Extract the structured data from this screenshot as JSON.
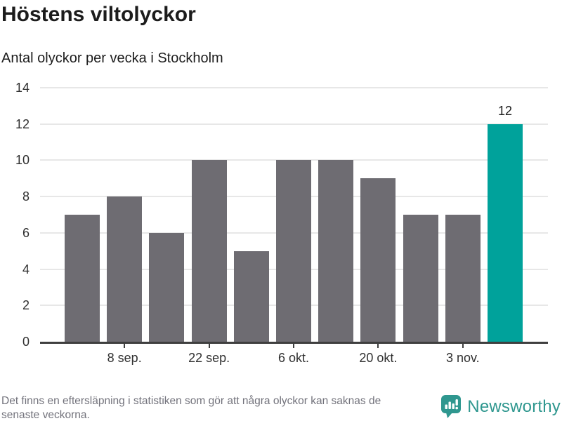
{
  "header": {
    "title": "Höstens viltolyckor",
    "subtitle": "Antal olyckor per vecka i Stockholm"
  },
  "chart_data": {
    "type": "bar",
    "title": "Höstens viltolyckor",
    "subtitle": "Antal olyckor per vecka i Stockholm",
    "values": [
      7,
      8,
      6,
      10,
      5,
      10,
      10,
      9,
      7,
      7,
      12
    ],
    "highlight_index": 10,
    "data_labels": [
      {
        "index": 10,
        "text": "12"
      }
    ],
    "x_tick_labels": [
      "8 sep.",
      "22 sep.",
      "6 okt.",
      "20 okt.",
      "3 nov."
    ],
    "x_tick_indices": [
      1,
      3,
      5,
      7,
      9
    ],
    "y_ticks": [
      0,
      2,
      4,
      6,
      8,
      10,
      12,
      14
    ],
    "ylim": [
      0,
      14
    ],
    "grid": true,
    "legend": "none",
    "colors": {
      "bar": "#6e6c72",
      "highlight": "#00a29b",
      "grid": "#e7e7e7",
      "axis": "#3f3f3f",
      "tick_text": "#303030"
    }
  },
  "footer": {
    "note_lines": [
      "Det finns en eftersläpning i statistiken som gör att några olyckor kan saknas de",
      "senaste veckorna."
    ],
    "note_color": "#72727b",
    "brand": {
      "name": "Newsworthy",
      "color": "#2f978f",
      "icon": "bar-chart-speech-bubble"
    }
  }
}
